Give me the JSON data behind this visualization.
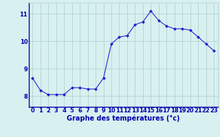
{
  "x": [
    0,
    1,
    2,
    3,
    4,
    5,
    6,
    7,
    8,
    9,
    10,
    11,
    12,
    13,
    14,
    15,
    16,
    17,
    18,
    19,
    20,
    21,
    22,
    23
  ],
  "y": [
    8.65,
    8.2,
    8.05,
    8.05,
    8.05,
    8.3,
    8.3,
    8.25,
    8.25,
    8.65,
    9.9,
    10.15,
    10.2,
    10.6,
    10.7,
    11.1,
    10.75,
    10.55,
    10.45,
    10.45,
    10.4,
    10.15,
    9.9,
    9.65
  ],
  "xlabel": "Graphe des températures (°c)",
  "xlim": [
    -0.5,
    23.5
  ],
  "ylim": [
    7.6,
    11.4
  ],
  "yticks": [
    8,
    9,
    10,
    11
  ],
  "xticks": [
    0,
    1,
    2,
    3,
    4,
    5,
    6,
    7,
    8,
    9,
    10,
    11,
    12,
    13,
    14,
    15,
    16,
    17,
    18,
    19,
    20,
    21,
    22,
    23
  ],
  "line_color": "#2222cc",
  "marker": "D",
  "markersize": 2.0,
  "bg_color": "#d8f0f0",
  "grid_color": "#aacccc",
  "axis_color": "#0000aa",
  "label_fontsize": 7,
  "tick_fontsize": 6,
  "linewidth": 0.8
}
